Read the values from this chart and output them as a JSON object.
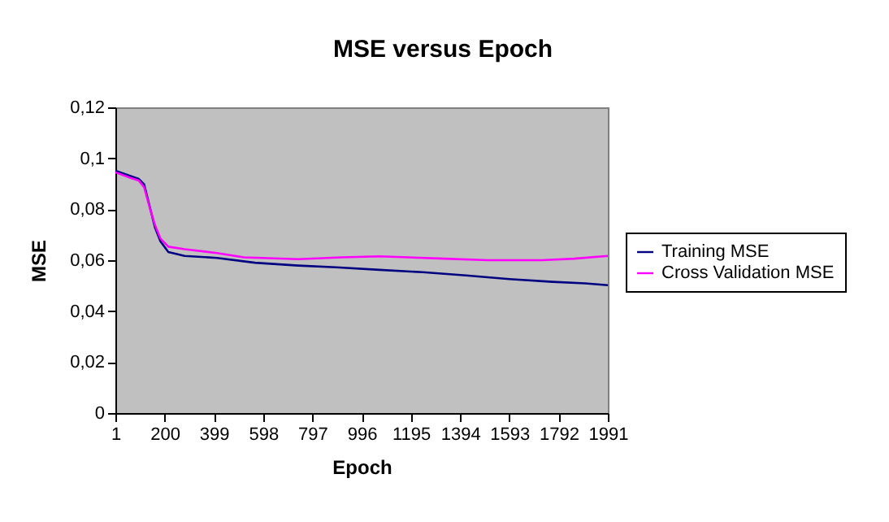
{
  "chart_data": {
    "type": "line",
    "title": "MSE versus Epoch",
    "xlabel": "Epoch",
    "ylabel": "MSE",
    "xlim": [
      1,
      1991
    ],
    "xticks": [
      1,
      200,
      399,
      598,
      797,
      996,
      1195,
      1394,
      1593,
      1792,
      1991
    ],
    "ylim": [
      0,
      0.12
    ],
    "yticks": [
      0,
      {
        "value": 0.02,
        "label": "0,02"
      },
      {
        "value": 0.04,
        "label": "0,04"
      },
      {
        "value": 0.06,
        "label": "0,06"
      },
      {
        "value": 0.08,
        "label": "0,08"
      },
      {
        "value": 0.1,
        "label": "0,1"
      },
      {
        "value": 0.12,
        "label": "0,12"
      }
    ],
    "grid": false,
    "legend": "right",
    "marker": "none",
    "line_style": "solid",
    "series": [
      {
        "name": "Training MSE",
        "color": "#000080",
        "x": [
          1,
          62,
          95,
          117,
          139,
          161,
          183,
          215,
          281,
          412,
          565,
          740,
          893,
          1068,
          1243,
          1418,
          1593,
          1768,
          1899,
          1991
        ],
        "values": [
          0.0951,
          0.093,
          0.0919,
          0.0898,
          0.0813,
          0.0728,
          0.0674,
          0.0632,
          0.0617,
          0.0609,
          0.059,
          0.0579,
          0.0572,
          0.0562,
          0.0553,
          0.054,
          0.0526,
          0.0515,
          0.0509,
          0.0502
        ]
      },
      {
        "name": "Cross Validation MSE",
        "color": "#ff00ff",
        "x": [
          1,
          62,
          95,
          117,
          139,
          161,
          183,
          215,
          281,
          412,
          521,
          740,
          915,
          1068,
          1331,
          1506,
          1724,
          1855,
          1991
        ],
        "values": [
          0.0945,
          0.0923,
          0.0913,
          0.0887,
          0.0809,
          0.0738,
          0.0685,
          0.0653,
          0.0643,
          0.0628,
          0.0611,
          0.0604,
          0.0611,
          0.0615,
          0.0606,
          0.06,
          0.06,
          0.0606,
          0.0617
        ]
      }
    ]
  }
}
